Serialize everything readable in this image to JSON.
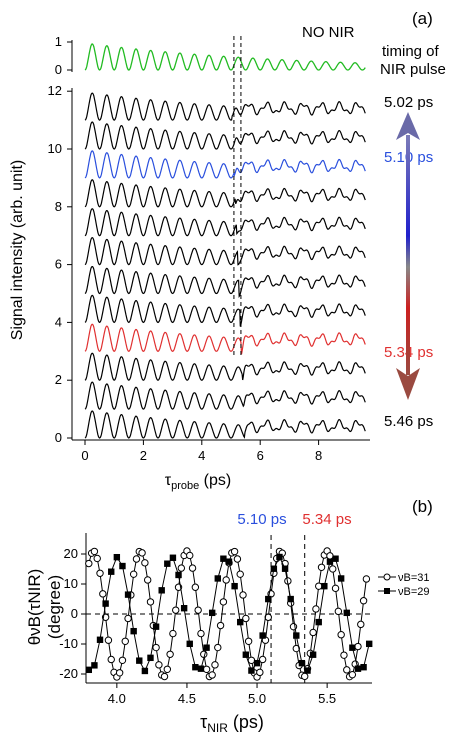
{
  "panel_a": {
    "tag": "(a)",
    "no_nir_label": "NO NIR",
    "timing_label_line1": "timing of",
    "timing_label_line2": "NIR pulse",
    "time_labels": [
      "5.02 ps",
      "5.10 ps",
      "5.34 ps",
      "5.46 ps"
    ],
    "colors": {
      "no_nir": "#22bb22",
      "highlight_510": "#2a4fdd",
      "highlight_534": "#e03030",
      "default": "#000000",
      "arrow_top": "#6a6aa8",
      "arrow_bottom": "#9a4a40"
    }
  },
  "panel_b": {
    "tag": "(b)",
    "vline_labels": [
      "5.10 ps",
      "5.34 ps"
    ],
    "vline_colors": [
      "#2a4fdd",
      "#e03030"
    ]
  },
  "chart_data": [
    {
      "type": "line",
      "xlabel": "τprobe (ps)",
      "xlabel_main": "τ",
      "xlabel_sub": "probe",
      "xlabel_unit": " (ps)",
      "ylabel": "Signal intensity (arb. unit)",
      "xlim": [
        -0.3,
        9.6
      ],
      "ylim": [
        0,
        12
      ],
      "xticks": [
        0,
        2,
        4,
        6,
        8
      ],
      "yticks": [
        0,
        2,
        4,
        6,
        8,
        10,
        12
      ],
      "top_axis_ylim": [
        0,
        1
      ],
      "top_axis_yticks": [
        0,
        1
      ],
      "vlines_x": [
        5.1,
        5.34
      ],
      "period_ps": 0.5,
      "trace_offsets": [
        0,
        1,
        2,
        3,
        4,
        5,
        6,
        7,
        8,
        9,
        10,
        11
      ],
      "highlight_traces": {
        "blue": 9,
        "red": 3
      }
    },
    {
      "type": "scatter",
      "xlabel": "τNIR (ps)",
      "xlabel_main": "τ",
      "xlabel_sub": "NIR",
      "xlabel_unit": " (ps)",
      "ylabel_line1": "θνB(τNIR)",
      "ylabel_line2": "(degree)",
      "xlim": [
        3.78,
        5.82
      ],
      "ylim": [
        -23,
        27
      ],
      "xticks": [
        4.0,
        4.5,
        5.0,
        5.5
      ],
      "xtick_labels": [
        "4.0",
        "4.5",
        "5.0",
        "5.5"
      ],
      "yticks": [
        -20,
        -10,
        0,
        10,
        20
      ],
      "vlines_x": [
        5.1,
        5.34
      ],
      "series": [
        {
          "name": "νB=31",
          "marker": "open-circle",
          "amplitude": 21,
          "period": 0.333,
          "peak_at": 4.5,
          "x_start": 3.8,
          "x_end": 5.78,
          "step": 0.02
        },
        {
          "name": "νB=29",
          "marker": "filled-square",
          "amplitude": 19,
          "period": 0.385,
          "peak_at": 4.39,
          "x_start": 3.8,
          "x_end": 5.8,
          "step": 0.04
        }
      ]
    }
  ]
}
